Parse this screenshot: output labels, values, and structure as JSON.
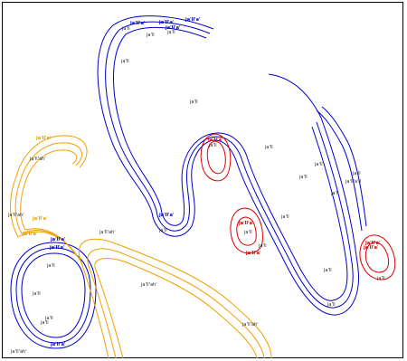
{
  "colors": {
    "blue": "#0000cc",
    "orange": "#f0a000",
    "red": "#dd0000",
    "border": "#000000",
    "background": "#ffffff"
  },
  "labels": {
    "jaii": "ja'll",
    "jaiiah": "ja'll'ah'",
    "jaiiw": "ja'll'a'",
    "jaiiaiii": "ja'll'a'll"
  }
}
